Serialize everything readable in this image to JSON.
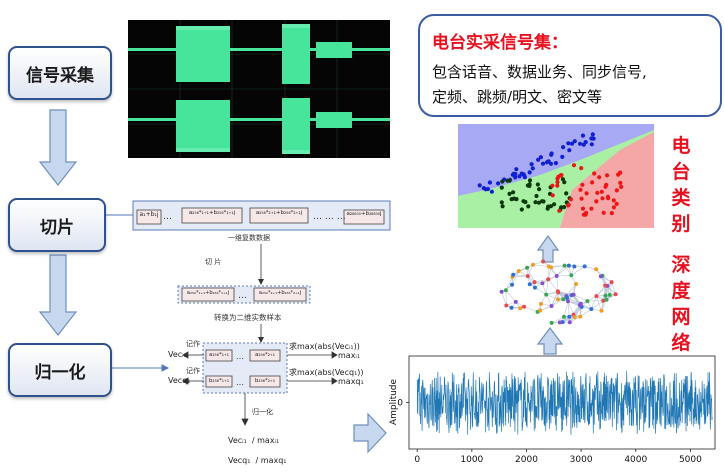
{
  "steps": {
    "signal_collection": "信号采集",
    "slicing": "切片",
    "normalization": "归一化"
  },
  "info_box": {
    "title": "电台实采信号集：",
    "line1": "包含话音、数据业务、同步信号,",
    "line2": "定频、跳频/明文、密文等"
  },
  "side_labels": {
    "station_category": "电台类别",
    "deep_network": "深度网络"
  },
  "slicing_diagram": {
    "cell_first": "a₁+b₁j",
    "cell_mid1": "a₂₅₆*₁₊₁+b₂₅₆*₁₊₁j",
    "cell_mid2": "a₂₅₆*₂₊₁+b₂₅₆*₂₊₁j",
    "cell_last": "a₂₈₈₀₀+b₂₈₈₀₀j",
    "row_caption": "一维复数数据",
    "slice_label": "切 片",
    "sample_cell1": "a₂₅₆*₁₊₁+b₂₅₆*₁₊₁j",
    "sample_cell2": "a₂₅₆*₂₊₁+b₂₅₆*₂₊₁j",
    "convert_caption": "转换为二维实数样本"
  },
  "norm_diagram": {
    "label_i": "记作",
    "label_q": "记作",
    "vec_i": "Vecᵢ₁",
    "vec_q": "Vecq₁",
    "cell_a1": "a₂₅₆*₁₊₁",
    "cell_a2": "a₂₅₆*₂₊₁",
    "cell_b1": "b₂₅₆*₁₊₁",
    "cell_b2": "b₂₅₆*₂₊₁",
    "max_i_text": "求max(abs(Vecᵢ₁))",
    "max_q_text": "求max(abs(Vecq₁))",
    "max_i": "maxᵢ₁",
    "max_q": "maxq₁",
    "norm_label": "归一化",
    "result_i": "Vecᵢ₁  / maxᵢ₁",
    "result_q": "Vecq₁  / maxq₁"
  },
  "chart_data": {
    "type": "line",
    "ylabel": "Amplitude",
    "x_ticks": [
      "0",
      "1000",
      "2000",
      "3000",
      "4000",
      "5000"
    ],
    "y_ticks": [
      "0"
    ],
    "xlim": [
      -150,
      5450
    ],
    "ylim": [
      -1.4,
      1.4
    ],
    "n_points": 5400,
    "series_color": "#1f77b4",
    "series": [
      {
        "x_range": [
          0,
          5400
        ],
        "amplitude_range": [
          -1,
          1
        ]
      }
    ]
  },
  "colors": {
    "step_border": "#2f528f",
    "arrow_fill": "#c7d8ee",
    "arrow_stroke": "#6f8fbd",
    "accent_red": "#e8101e",
    "waveform_green": "#46e59b",
    "scope_bg": "#050505"
  },
  "icons": {
    "down_arrow": "down-arrow-icon",
    "right_arrow": "right-arrow-icon",
    "up_arrow": "up-arrow-icon",
    "brain": "brain-network-icon"
  }
}
